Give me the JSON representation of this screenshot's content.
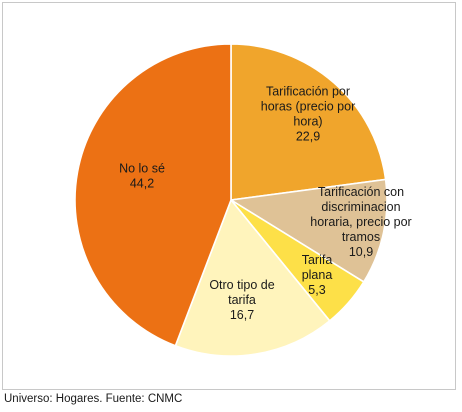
{
  "chart_data": {
    "type": "pie",
    "title": "",
    "slices": [
      {
        "lines": [
          "Tarificación por",
          "horas (precio por",
          "hora)"
        ],
        "value": 22.9,
        "value_label": "22,9",
        "color": "#f0a52c"
      },
      {
        "lines": [
          "Tarificación con",
          "discriminacion",
          "horaria, precio por",
          "tramos"
        ],
        "value": 10.9,
        "value_label": "10,9",
        "color": "#dfc296"
      },
      {
        "lines": [
          "Tarifa",
          "plana"
        ],
        "value": 5.3,
        "value_label": "5,3",
        "color": "#fde048"
      },
      {
        "lines": [
          "Otro tipo de",
          "tarifa"
        ],
        "value": 16.7,
        "value_label": "16,7",
        "color": "#fff4bc"
      },
      {
        "lines": [
          "No lo sé"
        ],
        "value": 44.2,
        "value_label": "44,2",
        "color": "#ec7114"
      }
    ]
  },
  "source": "Universo: Hogares. Fuente: CNMC"
}
